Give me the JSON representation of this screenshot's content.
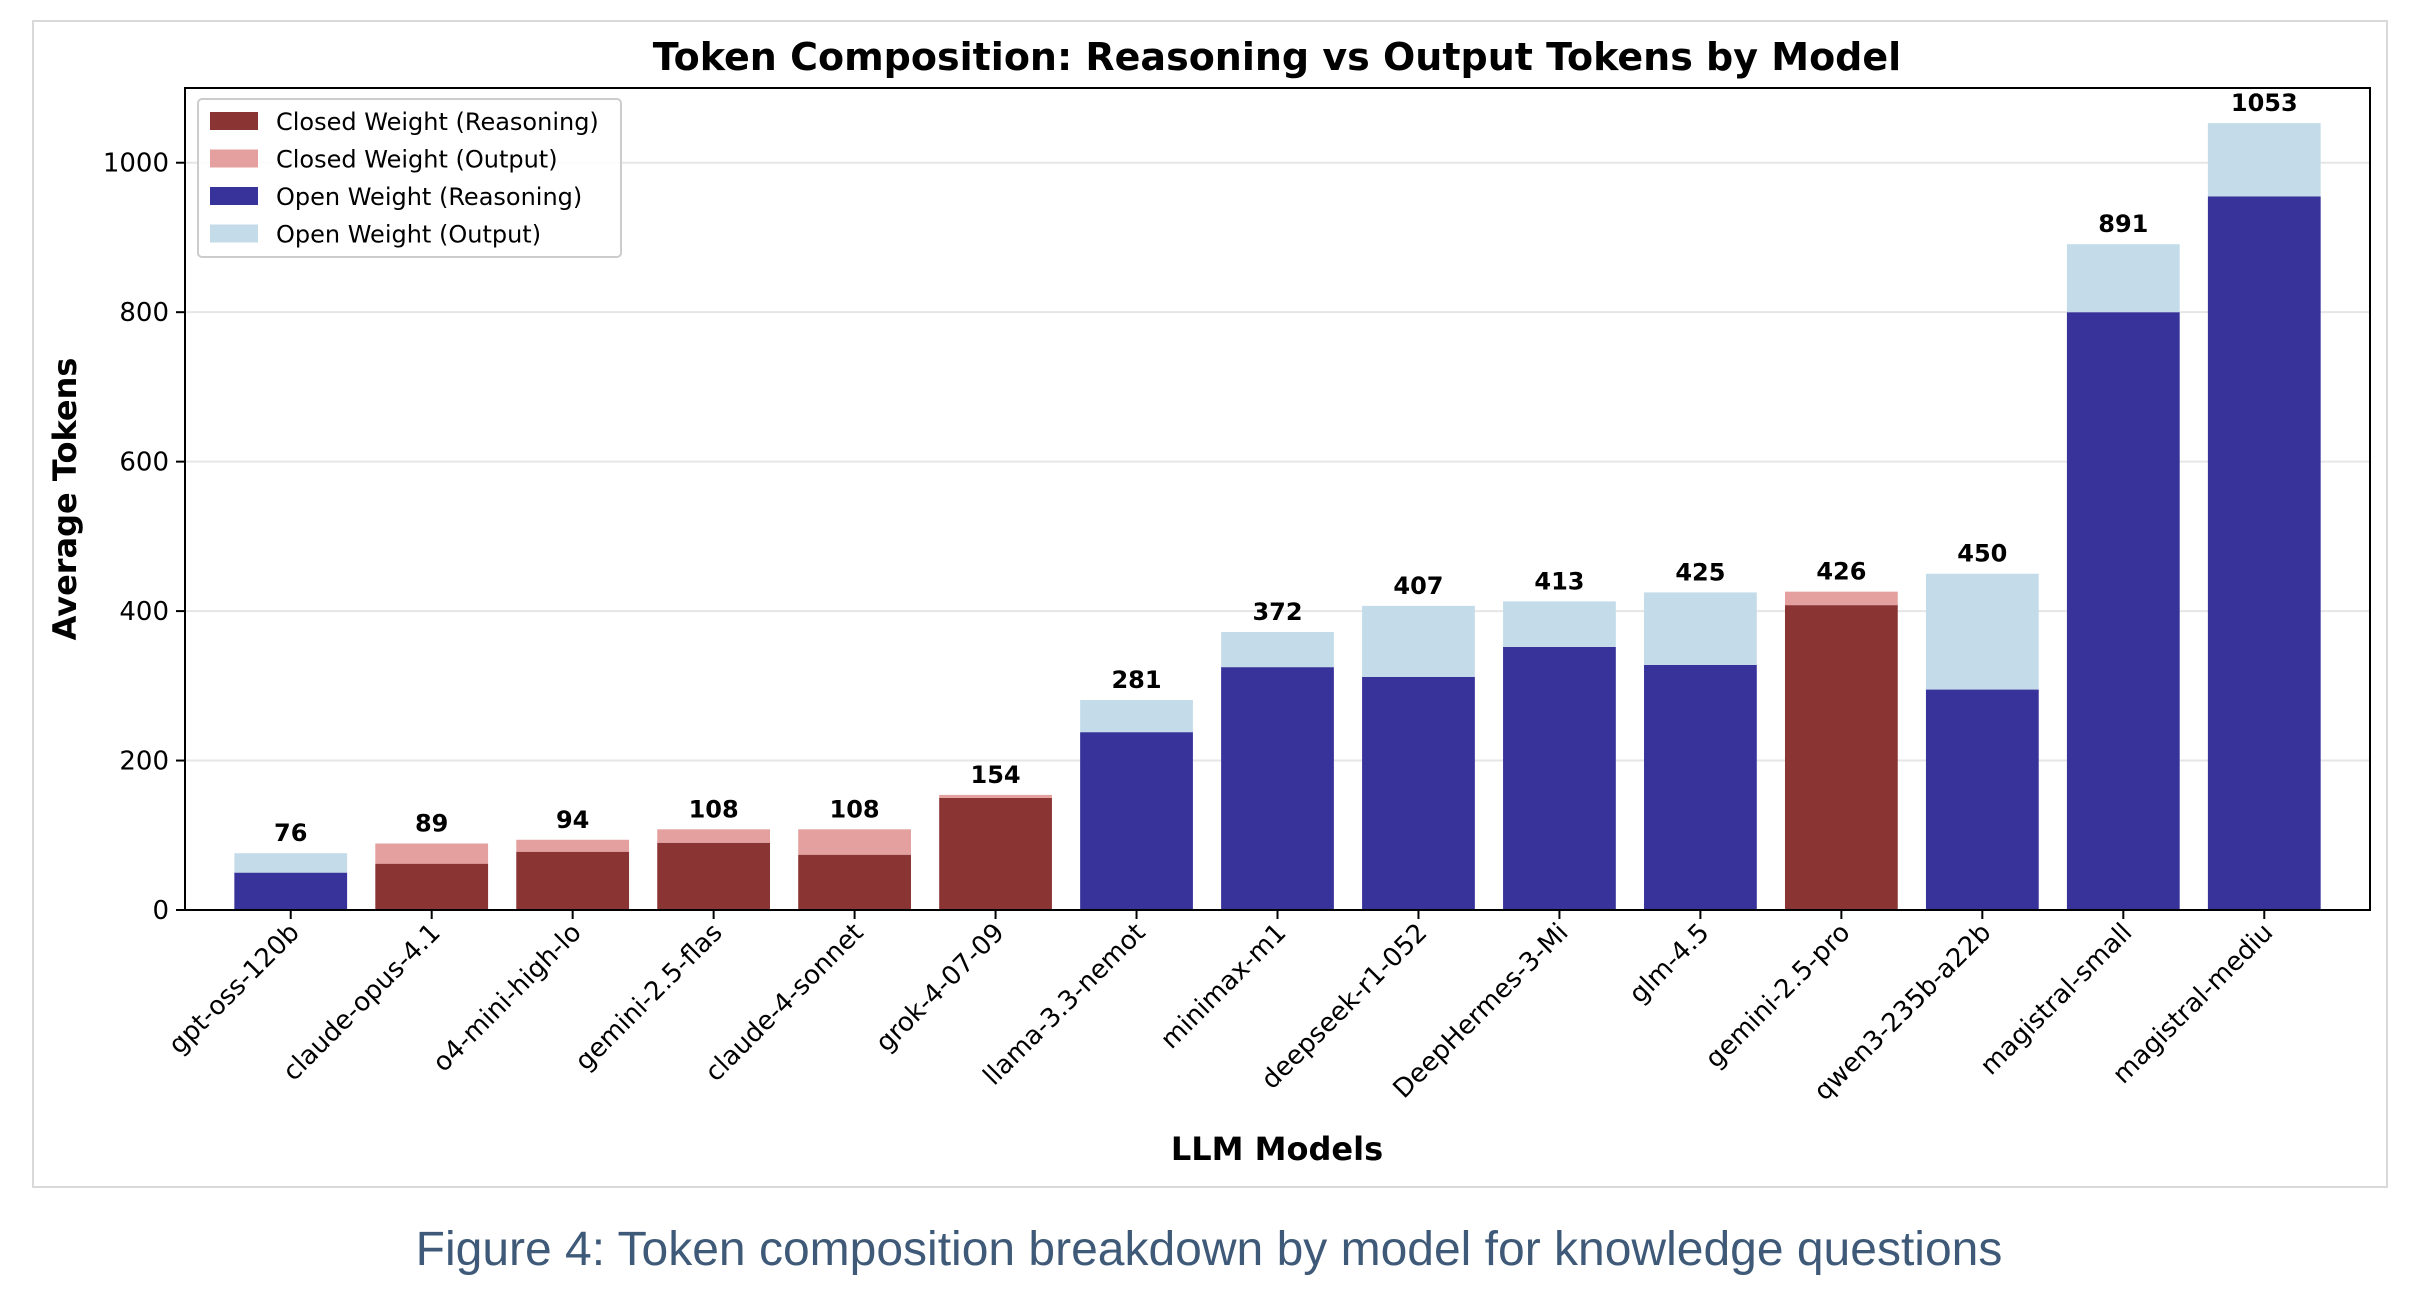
{
  "caption": "Figure 4: Token composition breakdown by model for knowledge questions",
  "chart_data": {
    "type": "bar",
    "stacked": true,
    "title": "Token Composition: Reasoning vs Output Tokens by Model",
    "xlabel": "LLM Models",
    "ylabel": "Average Tokens",
    "ylim": [
      0,
      1100
    ],
    "yticks": [
      0,
      200,
      400,
      600,
      800,
      1000
    ],
    "grid": true,
    "legend_position": "top-left",
    "categories": [
      "gpt-oss-120b",
      "claude-opus-4.1",
      "o4-mini-high-lo",
      "gemini-2.5-flas",
      "claude-4-sonnet",
      "grok-4-07-09",
      "llama-3.3-nemot",
      "minimax-m1",
      "deepseek-r1-052",
      "DeepHermes-3-Mi",
      "glm-4.5",
      "gemini-2.5-pro",
      "qwen3-235b-a22b",
      "magistral-small",
      "magistral-mediu"
    ],
    "group": [
      "open",
      "closed",
      "closed",
      "closed",
      "closed",
      "closed",
      "open",
      "open",
      "open",
      "open",
      "open",
      "closed",
      "open",
      "open",
      "open"
    ],
    "reasoning": [
      50,
      62,
      78,
      90,
      74,
      150,
      238,
      325,
      312,
      352,
      328,
      408,
      295,
      800,
      955
    ],
    "totals": [
      76,
      89,
      94,
      108,
      108,
      154,
      281,
      372,
      407,
      413,
      425,
      426,
      450,
      891,
      1053
    ],
    "legend": [
      {
        "label": "Closed Weight (Reasoning)",
        "color": "#8b3434"
      },
      {
        "label": "Closed Weight (Output)",
        "color": "#e3a09e"
      },
      {
        "label": "Open Weight (Reasoning)",
        "color": "#37339b"
      },
      {
        "label": "Open Weight (Output)",
        "color": "#c4dce9"
      }
    ],
    "colors": {
      "closed_reasoning": "#8b3434",
      "closed_output": "#e3a09e",
      "open_reasoning": "#37339b",
      "open_output": "#c4dce9"
    }
  }
}
